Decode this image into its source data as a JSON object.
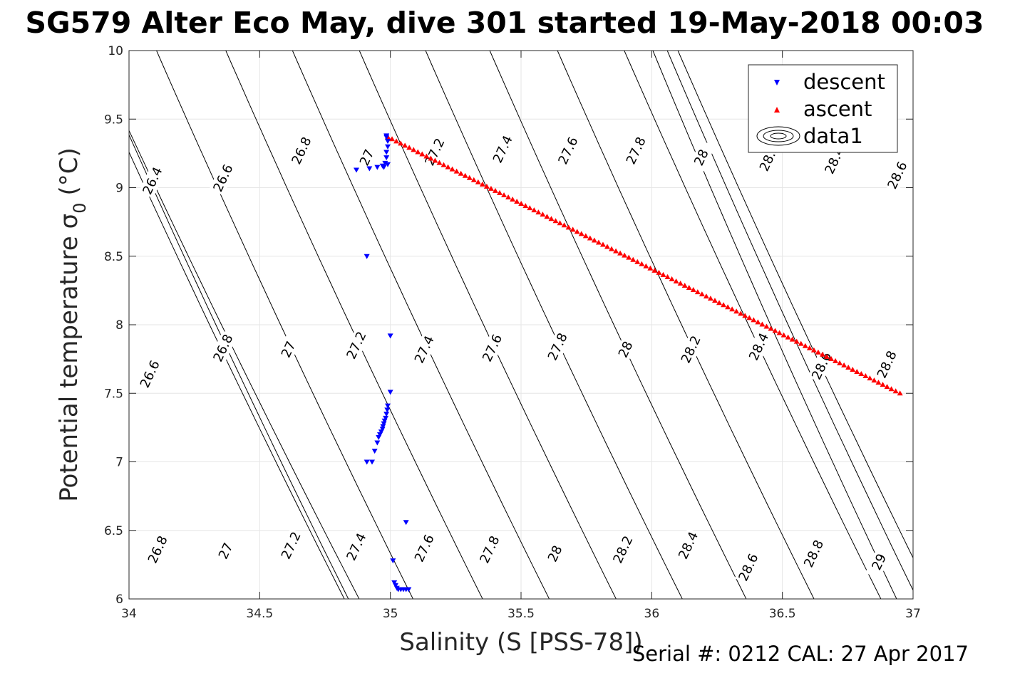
{
  "title": "SG579 Alter Eco May, dive 301 started 19-May-2018 00:03",
  "footer": "Serial #: 0212  CAL: 27 Apr 2017",
  "chart_data": {
    "type": "scatter",
    "xlabel": "Salinity (S [PSS-78])",
    "ylabel": "Potential temperature",
    "ylabel_symbol": "σ",
    "ylabel_subscript": "0",
    "ylabel_unit": "(°C)",
    "xlim": [
      34,
      37
    ],
    "ylim": [
      6,
      10
    ],
    "xticks": [
      34,
      34.5,
      35,
      35.5,
      36,
      36.5,
      37
    ],
    "xtick_labels": [
      "34",
      "34.5",
      "35",
      "35.5",
      "36",
      "36.5",
      "37"
    ],
    "yticks": [
      6,
      6.5,
      7,
      7.5,
      8,
      8.5,
      9,
      9.5,
      10
    ],
    "ytick_labels": [
      "6",
      "6.5",
      "7",
      "7.5",
      "8",
      "8.5",
      "9",
      "9.5",
      "10"
    ],
    "grid": true,
    "legend_position": "top-right",
    "series": [
      {
        "name": "descent",
        "marker": "triangle-down",
        "color": "#0000ff",
        "x": [
          34.87,
          34.92,
          34.95,
          34.97,
          34.98,
          34.985,
          34.985,
          34.99,
          34.99,
          34.985,
          34.985,
          34.99,
          34.975,
          34.91,
          35.0,
          35.0,
          34.99,
          34.988,
          34.985,
          34.982,
          34.978,
          34.975,
          34.972,
          34.97,
          34.965,
          34.96,
          34.955,
          34.95,
          34.94,
          34.93,
          34.91,
          35.06,
          35.01,
          35.015,
          35.02,
          35.025,
          35.03,
          35.04,
          35.05,
          35.06,
          35.07
        ],
        "y": [
          9.13,
          9.14,
          9.15,
          9.16,
          9.18,
          9.22,
          9.26,
          9.3,
          9.34,
          9.37,
          9.38,
          9.17,
          9.15,
          8.5,
          7.92,
          7.51,
          7.41,
          7.38,
          7.35,
          7.32,
          7.3,
          7.28,
          7.26,
          7.24,
          7.22,
          7.2,
          7.18,
          7.14,
          7.08,
          7.0,
          7.0,
          6.56,
          6.28,
          6.12,
          6.1,
          6.08,
          6.07,
          6.07,
          6.07,
          6.07,
          6.07
        ]
      },
      {
        "name": "ascent",
        "marker": "triangle-up",
        "color": "#ff0000",
        "x_start": 34.99,
        "y_start": 9.37,
        "x_end": 36.95,
        "y_end": 7.5,
        "count": 120
      },
      {
        "name": "data1",
        "marker": "contour",
        "color": "#000000"
      }
    ],
    "contours": {
      "levels_top": [
        {
          "label": "26.4",
          "s": 34.09,
          "t": 9.05
        },
        {
          "label": "26.6",
          "s": 34.36,
          "t": 9.07
        },
        {
          "label": "26.8",
          "s": 34.66,
          "t": 9.27
        },
        {
          "label": "27",
          "s": 34.91,
          "t": 9.22
        },
        {
          "label": "27.2",
          "s": 35.17,
          "t": 9.26
        },
        {
          "label": "27.4",
          "s": 35.43,
          "t": 9.28
        },
        {
          "label": "27.6",
          "s": 35.68,
          "t": 9.27
        },
        {
          "label": "27.8",
          "s": 35.94,
          "t": 9.27
        },
        {
          "label": "28",
          "s": 36.19,
          "t": 9.22
        },
        {
          "label": "28.2",
          "s": 36.45,
          "t": 9.22
        },
        {
          "label": "28.4",
          "s": 36.7,
          "t": 9.2
        },
        {
          "label": "28.6",
          "s": 36.94,
          "t": 9.09
        }
      ],
      "levels_mid": [
        {
          "label": "26.6",
          "s": 34.08,
          "t": 7.64
        },
        {
          "label": "26.8",
          "s": 34.36,
          "t": 7.83
        },
        {
          "label": "27",
          "s": 34.61,
          "t": 7.82
        },
        {
          "label": "27.2",
          "s": 34.87,
          "t": 7.85
        },
        {
          "label": "27.4",
          "s": 35.13,
          "t": 7.82
        },
        {
          "label": "27.6",
          "s": 35.39,
          "t": 7.83
        },
        {
          "label": "27.8",
          "s": 35.64,
          "t": 7.84
        },
        {
          "label": "28",
          "s": 35.9,
          "t": 7.82
        },
        {
          "label": "28.2",
          "s": 36.15,
          "t": 7.82
        },
        {
          "label": "28.4",
          "s": 36.41,
          "t": 7.84
        },
        {
          "label": "28.6",
          "s": 36.65,
          "t": 7.7
        },
        {
          "label": "28.8",
          "s": 36.9,
          "t": 7.71
        }
      ],
      "levels_bottom": [
        {
          "label": "26.8",
          "s": 34.11,
          "t": 6.36
        },
        {
          "label": "27",
          "s": 34.37,
          "t": 6.35
        },
        {
          "label": "27.2",
          "s": 34.62,
          "t": 6.39
        },
        {
          "label": "27.4",
          "s": 34.87,
          "t": 6.38
        },
        {
          "label": "27.6",
          "s": 35.13,
          "t": 6.37
        },
        {
          "label": "27.8",
          "s": 35.38,
          "t": 6.36
        },
        {
          "label": "28",
          "s": 35.63,
          "t": 6.33
        },
        {
          "label": "28.2",
          "s": 35.89,
          "t": 6.36
        },
        {
          "label": "28.4",
          "s": 36.14,
          "t": 6.39
        },
        {
          "label": "28.6",
          "s": 36.37,
          "t": 6.23
        },
        {
          "label": "28.8",
          "s": 36.62,
          "t": 6.33
        },
        {
          "label": "29",
          "s": 36.87,
          "t": 6.27
        }
      ]
    }
  }
}
